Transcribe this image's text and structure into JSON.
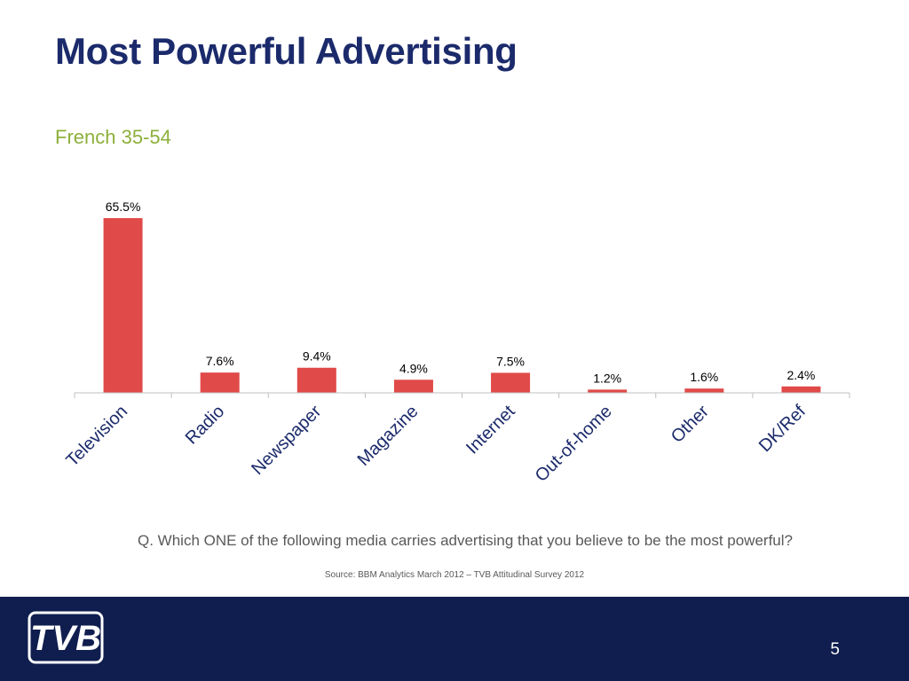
{
  "slide": {
    "title": "Most Powerful Advertising",
    "subtitle": "French 35-54",
    "question": "Q. Which ONE of the following media carries advertising that you believe to be the most powerful?",
    "source": "Source: BBM Analytics March 2012 – TVB Attitudinal Survey 2012",
    "page_number": "5"
  },
  "footer": {
    "logo_text": "TVB",
    "background_color": "#0f1e4e"
  },
  "chart_data": {
    "type": "bar",
    "title": "",
    "xlabel": "",
    "ylabel": "",
    "categories": [
      "Television",
      "Radio",
      "Newspaper",
      "Magazine",
      "Internet",
      "Out-of-home",
      "Other",
      "DK/Ref"
    ],
    "values": [
      65.5,
      7.6,
      9.4,
      4.9,
      7.5,
      1.2,
      1.6,
      2.4
    ],
    "data_labels": [
      "65.5%",
      "7.6%",
      "9.4%",
      "4.9%",
      "7.5%",
      "1.2%",
      "1.6%",
      "2.4%"
    ],
    "ylim": [
      0,
      100
    ],
    "y_axis_visible": false,
    "grid": false,
    "legend": "none",
    "bar_color": "#e04a48",
    "category_label_rotation_deg": -45
  }
}
